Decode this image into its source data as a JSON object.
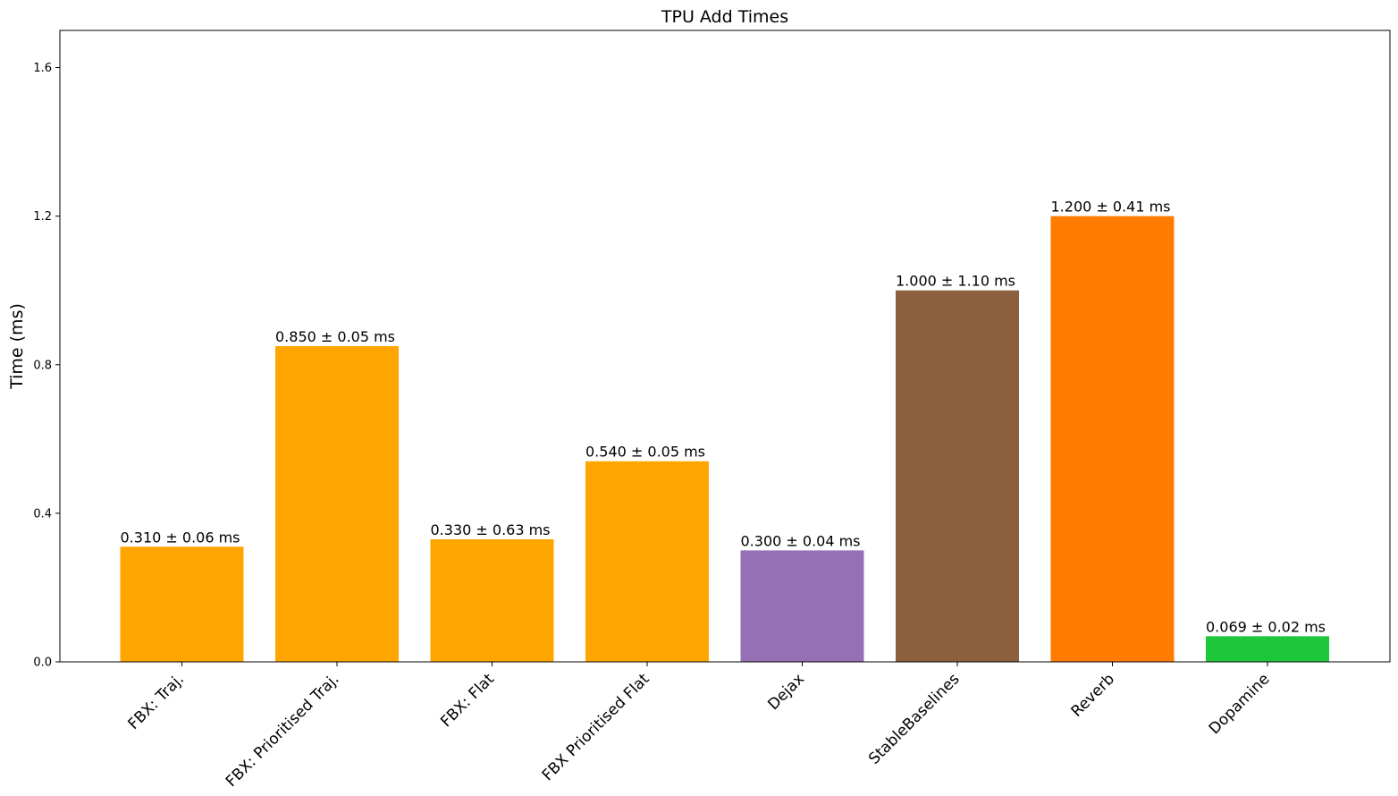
{
  "chart_data": {
    "type": "bar",
    "title": "TPU Add Times",
    "xlabel": "",
    "ylabel": "Time (ms)",
    "ylim": [
      0,
      1.7
    ],
    "yticks": [
      "0.0",
      "0.4",
      "0.8",
      "1.2",
      "1.6"
    ],
    "ytick_values": [
      0,
      0.4,
      0.8,
      1.2,
      1.6
    ],
    "grid": false,
    "categories": [
      "FBX: Traj.",
      "FBX: Prioritised Traj.",
      "FBX: Flat",
      "FBX Prioritised Flat",
      "Dejax",
      "StableBaselines",
      "Reverb",
      "Dopamine"
    ],
    "values": [
      0.31,
      0.85,
      0.33,
      0.54,
      0.3,
      1.0,
      1.2,
      0.069
    ],
    "errors": [
      0.06,
      0.05,
      0.63,
      0.05,
      0.04,
      1.1,
      0.41,
      0.02
    ],
    "data_labels": [
      "0.310 ± 0.06 ms",
      "0.850 ± 0.05 ms",
      "0.330 ± 0.63 ms",
      "0.540 ± 0.05 ms",
      "0.300 ± 0.04 ms",
      "1.000 ± 1.10 ms",
      "1.200 ± 0.41 ms",
      "0.069 ± 0.02 ms"
    ],
    "colors": [
      "#ffa500",
      "#ffa500",
      "#ffa500",
      "#ffa500",
      "#9670b4",
      "#8c603d",
      "#ff7c00",
      "#1cc73a"
    ]
  }
}
